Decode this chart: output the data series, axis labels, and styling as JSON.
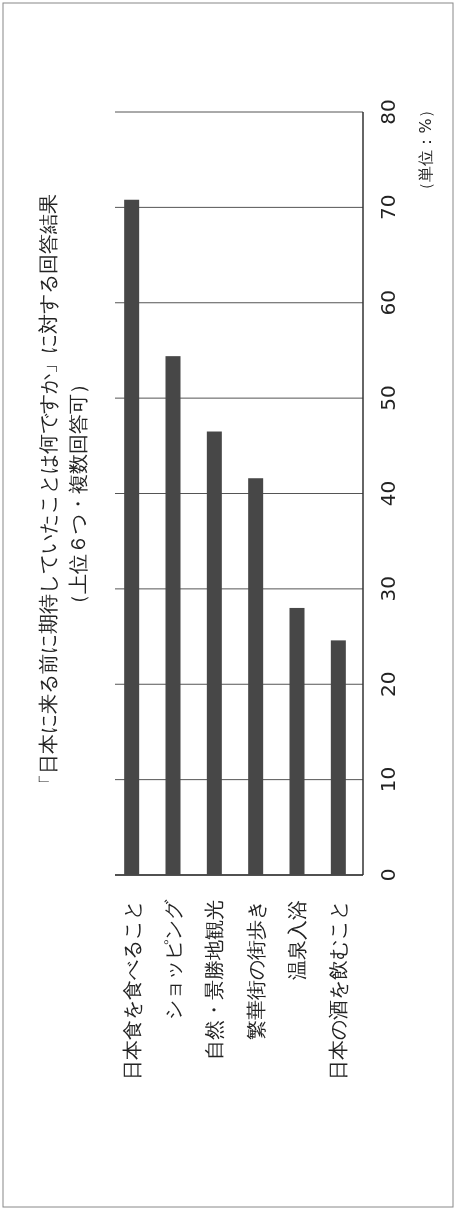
{
  "chart_data": {
    "type": "bar",
    "title": "「日本に来る前に期待していたことは何ですか」に対する回答結果",
    "subtitle": "（上位６つ・複数回答可）",
    "ylabel": "（単位：%）",
    "categories": [
      "日本食を食べること",
      "ショッピング",
      "自然・景勝地観光",
      "繁華街の街歩き",
      "温泉入浴",
      "日本の酒を飲むこと"
    ],
    "values": [
      70.8,
      54.4,
      46.5,
      41.6,
      28.0,
      24.6
    ],
    "color": "#474747",
    "ylim": [
      0,
      80
    ],
    "yticks": [
      0,
      10,
      20,
      30,
      40,
      50,
      60,
      70,
      80
    ],
    "grid": "y"
  }
}
